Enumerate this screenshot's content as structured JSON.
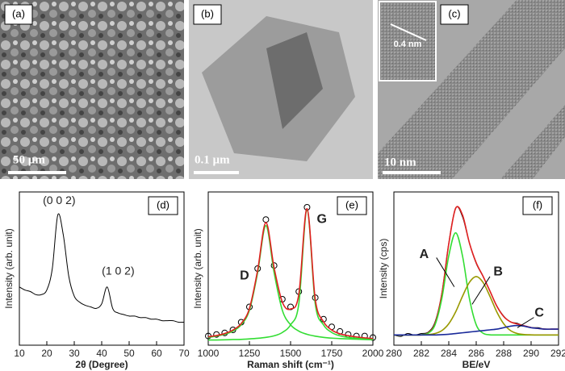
{
  "images": [
    {
      "label": "(a)",
      "scale_bar": "50 µm"
    },
    {
      "label": "(b)",
      "scale_bar": "0.1 µm"
    },
    {
      "label": "(c)",
      "scale_bar": "10 nm",
      "inset_label": "0.4 nm"
    }
  ],
  "chart_data": [
    {
      "type": "line",
      "label": "(d)",
      "xlabel": "2θ (Degree)",
      "ylabel": "Intensity (arb. unit)",
      "annotations": [
        "(0 0 2)",
        "(1 0 2)"
      ],
      "xlim": [
        10,
        70
      ],
      "xticks": [
        10,
        20,
        30,
        40,
        50,
        60,
        70
      ],
      "ylim": [
        0,
        100
      ],
      "series": [
        {
          "color": "#000000",
          "x": [
            10,
            12,
            14,
            16,
            18,
            20,
            22,
            24,
            26,
            28,
            30,
            32,
            34,
            36,
            38,
            40,
            42,
            44,
            46,
            48,
            50,
            52,
            54,
            56,
            58,
            60,
            62,
            64,
            66,
            68,
            70
          ],
          "values": [
            38,
            36,
            35,
            33,
            33,
            36,
            50,
            85,
            72,
            45,
            32,
            28,
            26,
            25,
            24,
            27,
            38,
            24,
            21,
            20,
            19,
            19,
            18,
            18,
            17,
            17,
            16,
            16,
            16,
            15,
            15
          ]
        }
      ]
    },
    {
      "type": "line",
      "label": "(e)",
      "xlabel": "Raman shift (cm⁻¹)",
      "ylabel": "Intensity (arb. unit)",
      "annotations": [
        "D",
        "G"
      ],
      "xlim": [
        1000,
        2000
      ],
      "xticks": [
        1000,
        1250,
        1500,
        1750,
        2000
      ],
      "ylim": [
        0,
        100
      ],
      "series": [
        {
          "color": "#000000",
          "markers": "circle",
          "x": [
            1000,
            1050,
            1100,
            1150,
            1200,
            1250,
            1300,
            1350,
            1400,
            1450,
            1500,
            1550,
            1600,
            1650,
            1700,
            1750,
            1800,
            1850,
            1900,
            1950,
            2000
          ],
          "values": [
            6,
            7,
            8,
            10,
            15,
            25,
            50,
            82,
            52,
            30,
            25,
            35,
            90,
            31,
            17,
            12,
            9,
            7,
            6,
            6,
            5
          ]
        },
        {
          "color": "#33dd33",
          "x": [
            1000,
            1050,
            1100,
            1150,
            1200,
            1250,
            1300,
            1350,
            1400,
            1450,
            1500,
            1550,
            1600,
            1650,
            1700,
            1750,
            1800,
            1850,
            1900,
            1950,
            2000
          ],
          "values": [
            5.1,
            5.9,
            7.1,
            9.2,
            13.3,
            22.8,
            47.4,
            78,
            47.4,
            22.8,
            13.3,
            9.2,
            7.1,
            5.9,
            5.1,
            4.6,
            4.3,
            4.1,
            3.9,
            3.7,
            3.6
          ]
        },
        {
          "color": "#33dd33",
          "x": [
            1000,
            1050,
            1100,
            1150,
            1200,
            1250,
            1300,
            1350,
            1400,
            1450,
            1500,
            1550,
            1600,
            1650,
            1700,
            1750,
            1800,
            1850,
            1900,
            1950,
            2000
          ],
          "values": [
            3.4,
            3.4,
            3.5,
            3.7,
            3.8,
            4.1,
            4.5,
            5.1,
            6.1,
            8.3,
            13.3,
            26.9,
            88,
            26.9,
            13.3,
            8.3,
            6.1,
            5.1,
            4.5,
            4.1,
            3.8
          ]
        },
        {
          "color": "#e02020",
          "x": [
            1000,
            1050,
            1100,
            1150,
            1200,
            1250,
            1300,
            1350,
            1400,
            1450,
            1500,
            1550,
            1600,
            1650,
            1700,
            1750,
            1800,
            1850,
            1900,
            1950,
            2000
          ],
          "values": [
            5.5,
            6.3,
            7.6,
            9.9,
            14.1,
            23.9,
            48.9,
            80.1,
            50.5,
            28.1,
            23.6,
            33.1,
            89.1,
            29.8,
            15.4,
            9.9,
            7.4,
            6.2,
            5.4,
            4.8,
            4.4
          ]
        }
      ]
    },
    {
      "type": "line",
      "label": "(f)",
      "xlabel": "BE/eV",
      "ylabel": "Intensity (cps)",
      "annotations": [
        "A",
        "B",
        "C"
      ],
      "xlim": [
        280,
        292
      ],
      "xticks": [
        280,
        282,
        284,
        286,
        288,
        290,
        292
      ],
      "ylim": [
        0,
        105
      ],
      "series": [
        {
          "color": "#000000",
          "x": [
            280,
            280.5,
            281,
            281.5,
            282,
            282.5,
            283,
            283.5,
            284,
            284.5,
            285,
            285.5,
            286,
            286.5,
            287,
            287.5,
            288,
            288.5,
            289,
            289.5,
            290,
            290.5,
            291,
            291.5,
            292
          ],
          "values": [
            7,
            6,
            8,
            7,
            8,
            9,
            16,
            36,
            70,
            94,
            88,
            70,
            56,
            47,
            37,
            27,
            20,
            16,
            15,
            13,
            12,
            12,
            11,
            11,
            11
          ]
        },
        {
          "color": "#e02020",
          "x": [
            280,
            280.5,
            281,
            281.5,
            282,
            282.5,
            283,
            283.5,
            284,
            284.5,
            285,
            285.5,
            286,
            286.5,
            287,
            287.5,
            288,
            288.5,
            289,
            289.5,
            290,
            290.5,
            291,
            291.5,
            292
          ],
          "values": [
            7,
            7,
            7,
            7,
            7.1,
            8.5,
            15,
            35.4,
            69.4,
            93.8,
            89.2,
            70.2,
            56.5,
            47.2,
            37.1,
            26.8,
            19.7,
            16,
            14.5,
            13.3,
            12.1,
            11.5,
            11,
            11,
            11
          ]
        },
        {
          "color": "#33dd33",
          "x": [
            280,
            280.5,
            281,
            281.5,
            282,
            282.5,
            283,
            283.5,
            284,
            284.5,
            285,
            285.5,
            286,
            286.5,
            287,
            287.5,
            288,
            288.5,
            289,
            289.5,
            290,
            290.5,
            291,
            291.5,
            292
          ],
          "values": [
            7,
            7,
            7,
            7,
            7.1,
            8.2,
            14,
            32.2,
            61.2,
            77,
            61.2,
            32.2,
            14,
            8.2,
            7.1,
            7,
            7,
            7,
            7,
            7,
            7,
            7,
            7,
            7,
            7
          ]
        },
        {
          "color": "#999900",
          "x": [
            280,
            280.5,
            281,
            281.5,
            282,
            282.5,
            283,
            283.5,
            284,
            284.5,
            285,
            285.5,
            286,
            286.5,
            287,
            287.5,
            288,
            288.5,
            289,
            289.5,
            290,
            290.5,
            291,
            291.5,
            292
          ],
          "values": [
            7,
            7,
            7,
            7,
            7,
            7.3,
            8,
            10,
            14.7,
            22.8,
            33.5,
            43,
            47,
            43,
            33.5,
            22.8,
            14.7,
            10,
            8,
            7.3,
            7.1,
            7,
            7,
            7,
            7
          ]
        },
        {
          "color": "#1a2a9a",
          "x": [
            280,
            280.5,
            281,
            281.5,
            282,
            282.5,
            283,
            283.5,
            284,
            284.5,
            285,
            285.5,
            286,
            286.5,
            287,
            287.5,
            288,
            288.5,
            289,
            289.5,
            290,
            290.5,
            291,
            291.5,
            292
          ],
          "values": [
            7,
            7,
            7,
            7,
            7,
            7,
            7,
            7.2,
            7.5,
            8,
            8.5,
            9,
            9.5,
            10,
            10.5,
            11,
            12,
            13,
            13.5,
            13,
            12,
            11.5,
            11,
            11,
            11
          ]
        }
      ]
    }
  ]
}
